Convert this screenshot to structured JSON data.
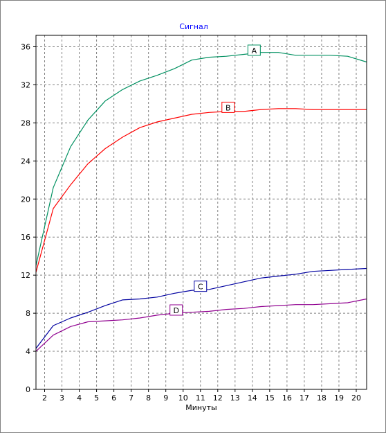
{
  "chart_data": {
    "type": "line",
    "title": "Сигнал",
    "xlabel": "Минуты",
    "ylabel": "",
    "xlim": [
      1.5,
      20.6
    ],
    "ylim": [
      0,
      37.2
    ],
    "x_ticks": [
      2,
      3,
      4,
      5,
      6,
      7,
      8,
      9,
      10,
      11,
      12,
      13,
      14,
      15,
      16,
      17,
      18,
      19,
      20
    ],
    "y_ticks": [
      0,
      4,
      8,
      12,
      16,
      20,
      24,
      28,
      32,
      36
    ],
    "grid": true,
    "x_tick_labels": [
      "2",
      "3",
      "4",
      "5",
      "6",
      "7",
      "8",
      "9",
      "10",
      "11",
      "12",
      "13",
      "14",
      "15",
      "16",
      "17",
      "18",
      "19",
      "20"
    ],
    "y_tick_labels": [
      "0",
      "4",
      "8",
      "12",
      "16",
      "20",
      "24",
      "28",
      "32",
      "36"
    ],
    "series": [
      {
        "name": "A",
        "color": "#009060",
        "label_at": [
          14.1,
          35.6
        ],
        "x": [
          1.5,
          2.5,
          3.5,
          4.5,
          5.5,
          6.5,
          7.5,
          8.5,
          9.5,
          10.5,
          11.5,
          12.5,
          13.5,
          14.5,
          15.5,
          16.5,
          17.5,
          18.5,
          19.5,
          20.6
        ],
        "y": [
          13.0,
          21.2,
          25.5,
          28.3,
          30.3,
          31.5,
          32.4,
          33.0,
          33.7,
          34.6,
          34.9,
          35.0,
          35.2,
          35.4,
          35.4,
          35.1,
          35.1,
          35.1,
          35.0,
          34.4
        ]
      },
      {
        "name": "B",
        "color": "#ff0000",
        "label_at": [
          12.6,
          29.6
        ],
        "x": [
          1.5,
          2.5,
          3.5,
          4.5,
          5.5,
          6.5,
          7.5,
          8.5,
          9.5,
          10.5,
          11.5,
          12.5,
          13.5,
          14.5,
          15.5,
          16.5,
          17.5,
          18.5,
          19.5,
          20.6
        ],
        "y": [
          12.3,
          19.0,
          21.5,
          23.7,
          25.3,
          26.5,
          27.5,
          28.1,
          28.5,
          28.9,
          29.1,
          29.2,
          29.2,
          29.4,
          29.5,
          29.5,
          29.4,
          29.4,
          29.4,
          29.4
        ]
      },
      {
        "name": "C",
        "color": "#0000a0",
        "label_at": [
          11.0,
          10.8
        ],
        "x": [
          1.5,
          2.5,
          3.5,
          4.5,
          5.5,
          6.5,
          7.5,
          8.5,
          9.5,
          10.5,
          11.5,
          12.5,
          13.5,
          14.5,
          15.5,
          16.5,
          17.5,
          18.5,
          19.5,
          20.6
        ],
        "y": [
          4.3,
          6.7,
          7.5,
          8.1,
          8.8,
          9.4,
          9.5,
          9.7,
          10.1,
          10.4,
          10.5,
          10.9,
          11.3,
          11.7,
          11.9,
          12.1,
          12.4,
          12.5,
          12.6,
          12.7
        ]
      },
      {
        "name": "D",
        "color": "#900090",
        "label_at": [
          9.6,
          8.3
        ],
        "x": [
          1.5,
          2.5,
          3.5,
          4.5,
          5.5,
          6.5,
          7.5,
          8.5,
          9.5,
          10.5,
          11.5,
          12.5,
          13.5,
          14.5,
          15.5,
          16.5,
          17.5,
          18.5,
          19.5,
          20.6
        ],
        "y": [
          4.0,
          5.7,
          6.6,
          7.1,
          7.2,
          7.3,
          7.5,
          7.8,
          8.0,
          8.1,
          8.2,
          8.4,
          8.5,
          8.7,
          8.8,
          8.9,
          8.9,
          9.0,
          9.1,
          9.5
        ]
      }
    ]
  }
}
